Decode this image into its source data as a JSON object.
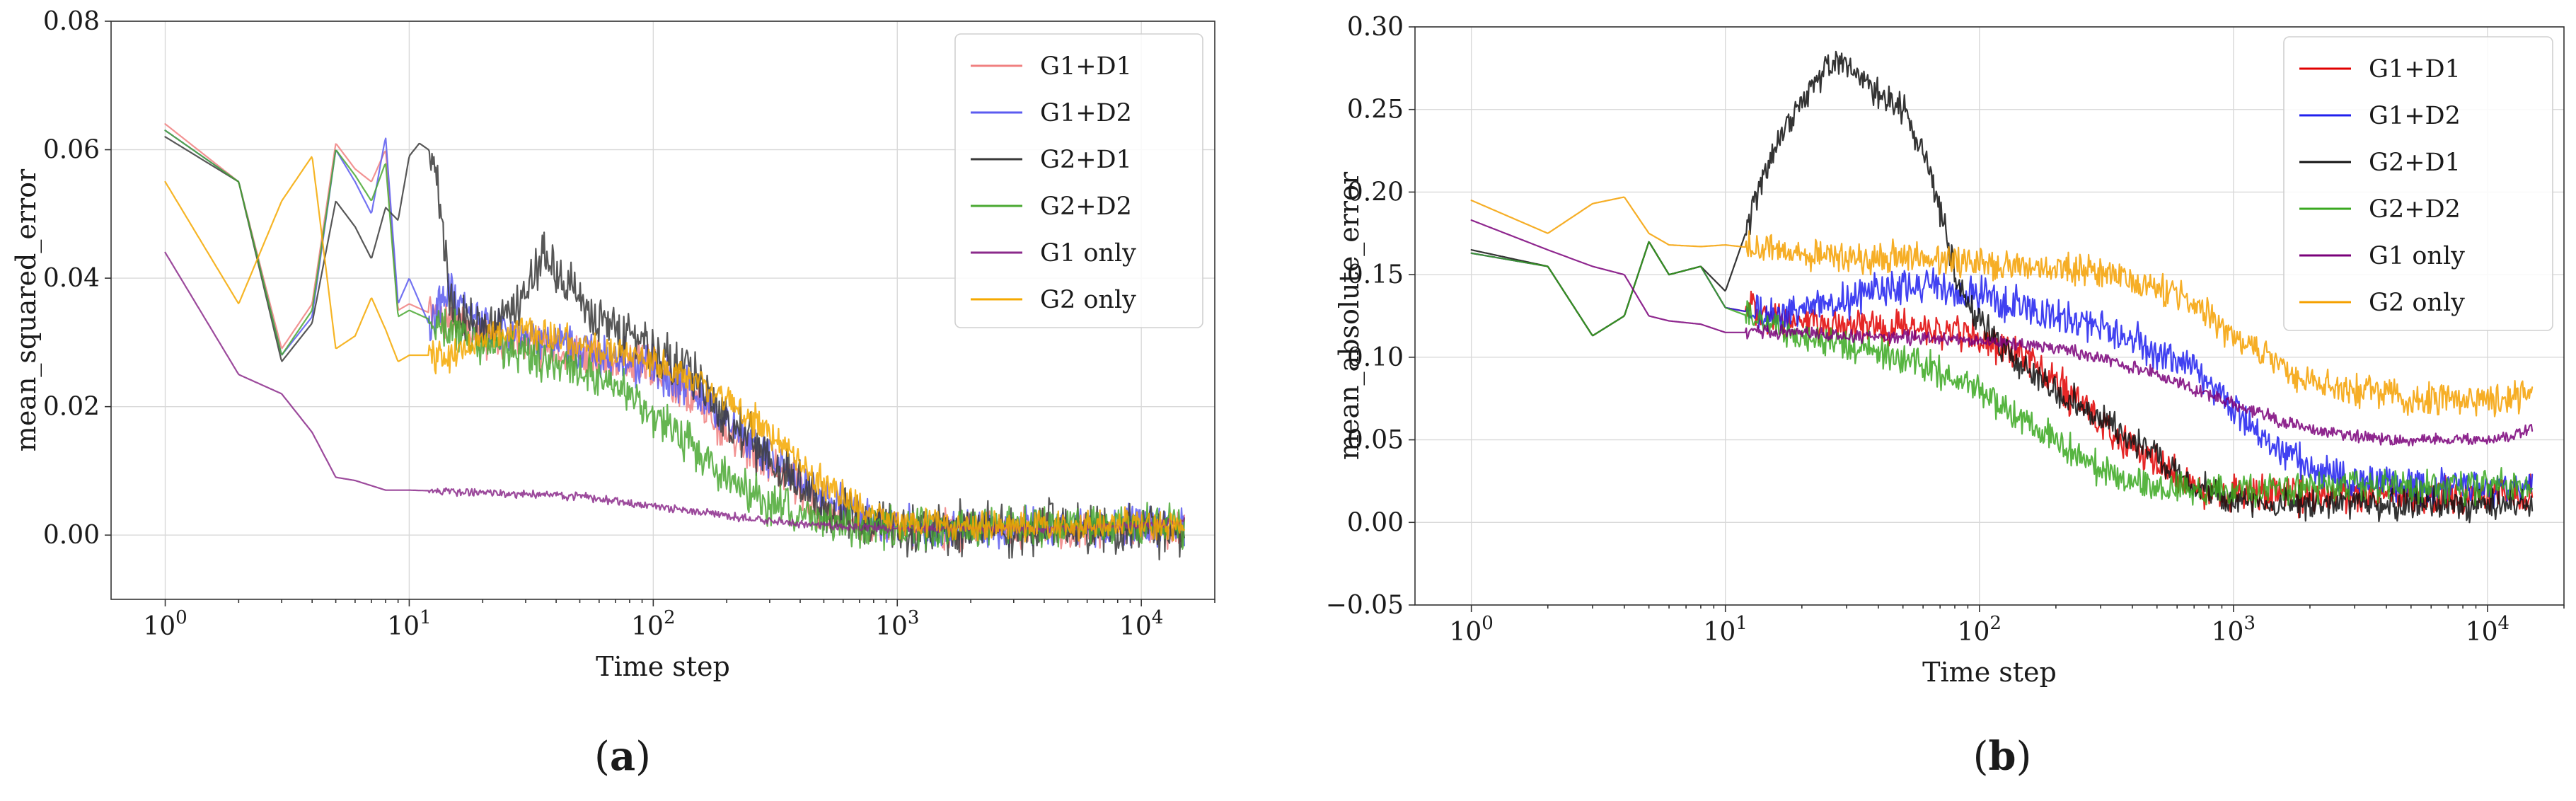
{
  "chart_data": [
    {
      "type": "line",
      "panel_label": "a",
      "xlabel": "Time step",
      "ylabel": "mean_squared_error",
      "xscale": "log",
      "xlim": [
        0.6,
        20000
      ],
      "ylim": [
        -0.01,
        0.08
      ],
      "yticks": [
        0.0,
        0.02,
        0.04,
        0.06,
        0.08
      ],
      "ytick_labels": [
        "0.00",
        "0.02",
        "0.04",
        "0.06",
        "0.08"
      ],
      "xticks": [
        {
          "base": "10",
          "exp": "0",
          "value": 1
        },
        {
          "base": "10",
          "exp": "1",
          "value": 10
        },
        {
          "base": "10",
          "exp": "2",
          "value": 100
        },
        {
          "base": "10",
          "exp": "3",
          "value": 1000
        },
        {
          "base": "10",
          "exp": "4",
          "value": 10000
        }
      ],
      "grid": true,
      "legend_position": "top-right",
      "series": [
        {
          "name": "G1+D1",
          "color": "#f08080",
          "x": [
            1,
            2,
            3,
            4,
            5,
            6,
            7,
            8,
            9,
            10,
            15,
            20,
            30,
            50,
            80,
            100,
            150,
            200,
            300,
            400,
            500,
            600,
            800,
            1000,
            2000,
            5000,
            10000,
            15000
          ],
          "y": [
            0.064,
            0.055,
            0.029,
            0.036,
            0.061,
            0.057,
            0.055,
            0.06,
            0.035,
            0.036,
            0.033,
            0.031,
            0.03,
            0.028,
            0.027,
            0.026,
            0.021,
            0.016,
            0.011,
            0.007,
            0.004,
            0.003,
            0.0015,
            0.001,
            0.001,
            0.001,
            0.001,
            0.001
          ],
          "noise": 0.004
        },
        {
          "name": "G1+D2",
          "color": "#5b5bf0",
          "x": [
            1,
            2,
            3,
            4,
            5,
            6,
            7,
            8,
            9,
            10,
            12,
            15,
            20,
            30,
            50,
            100,
            150,
            200,
            300,
            500,
            700,
            1000,
            1500,
            2000,
            5000,
            10000,
            15000
          ],
          "y": [
            0.063,
            0.055,
            0.028,
            0.034,
            0.06,
            0.055,
            0.05,
            0.062,
            0.036,
            0.04,
            0.033,
            0.038,
            0.033,
            0.031,
            0.029,
            0.026,
            0.022,
            0.018,
            0.012,
            0.006,
            0.003,
            0.0015,
            0.001,
            0.001,
            0.0015,
            0.0015,
            0.0015
          ],
          "noise": 0.004
        },
        {
          "name": "G2+D1",
          "color": "#3a3a3a",
          "x": [
            1,
            2,
            3,
            4,
            5,
            6,
            7,
            8,
            9,
            10,
            11,
            12,
            13,
            15,
            20,
            30,
            35,
            50,
            80,
            100,
            150,
            200,
            300,
            400,
            500,
            600,
            800,
            1000,
            2000,
            5000,
            10000,
            15000
          ],
          "y": [
            0.062,
            0.055,
            0.027,
            0.033,
            0.052,
            0.048,
            0.043,
            0.051,
            0.049,
            0.059,
            0.061,
            0.06,
            0.055,
            0.034,
            0.032,
            0.036,
            0.044,
            0.036,
            0.031,
            0.029,
            0.024,
            0.018,
            0.012,
            0.008,
            0.004,
            0.003,
            0.0015,
            0.001,
            0.001,
            0.001,
            0.001,
            0.001
          ],
          "noise": 0.005
        },
        {
          "name": "G2+D2",
          "color": "#4aa832",
          "x": [
            1,
            2,
            3,
            4,
            5,
            6,
            7,
            8,
            9,
            10,
            15,
            20,
            30,
            50,
            80,
            100,
            150,
            200,
            300,
            400,
            500,
            700,
            1000,
            2000,
            5000,
            10000,
            15000
          ],
          "y": [
            0.063,
            0.055,
            0.028,
            0.035,
            0.06,
            0.056,
            0.052,
            0.058,
            0.034,
            0.035,
            0.032,
            0.03,
            0.028,
            0.026,
            0.022,
            0.019,
            0.013,
            0.009,
            0.005,
            0.003,
            0.002,
            0.001,
            0.001,
            0.001,
            0.0015,
            0.0015,
            0.0015
          ],
          "noise": 0.004
        },
        {
          "name": "G1 only",
          "color": "#8b2a8b",
          "x": [
            1,
            2,
            3,
            4,
            5,
            6,
            8,
            10,
            15,
            20,
            30,
            50,
            100,
            200,
            300,
            500,
            1000,
            2000,
            5000,
            10000,
            15000
          ],
          "y": [
            0.044,
            0.025,
            0.022,
            0.016,
            0.009,
            0.0085,
            0.007,
            0.007,
            0.0068,
            0.0066,
            0.0064,
            0.006,
            0.0045,
            0.003,
            0.0022,
            0.0015,
            0.001,
            0.001,
            0.001,
            0.0015,
            0.002
          ],
          "noise": 0.0008
        },
        {
          "name": "G2 only",
          "color": "#f5a800",
          "x": [
            1,
            2,
            3,
            4,
            5,
            6,
            7,
            8,
            9,
            10,
            15,
            20,
            30,
            50,
            80,
            100,
            150,
            200,
            300,
            400,
            500,
            700,
            1000,
            2000,
            5000,
            10000,
            15000
          ],
          "y": [
            0.055,
            0.036,
            0.052,
            0.059,
            0.029,
            0.031,
            0.037,
            0.032,
            0.027,
            0.028,
            0.028,
            0.031,
            0.032,
            0.03,
            0.028,
            0.027,
            0.024,
            0.021,
            0.016,
            0.011,
            0.008,
            0.004,
            0.002,
            0.0015,
            0.0015,
            0.0015,
            0.0015
          ],
          "noise": 0.003
        }
      ]
    },
    {
      "type": "line",
      "panel_label": "b",
      "xlabel": "Time step",
      "ylabel": "mean_absolute_error",
      "xscale": "log",
      "xlim": [
        0.6,
        20000
      ],
      "ylim": [
        -0.05,
        0.3
      ],
      "yticks": [
        -0.05,
        0.0,
        0.05,
        0.1,
        0.15,
        0.2,
        0.25,
        0.3
      ],
      "ytick_labels": [
        "−0.05",
        "0.00",
        "0.05",
        "0.10",
        "0.15",
        "0.20",
        "0.25",
        "0.30"
      ],
      "xticks": [
        {
          "base": "10",
          "exp": "0",
          "value": 1
        },
        {
          "base": "10",
          "exp": "1",
          "value": 10
        },
        {
          "base": "10",
          "exp": "2",
          "value": 100
        },
        {
          "base": "10",
          "exp": "3",
          "value": 1000
        },
        {
          "base": "10",
          "exp": "4",
          "value": 10000
        }
      ],
      "grid": true,
      "legend_position": "top-right",
      "series": [
        {
          "name": "G1+D1",
          "color": "#e00000",
          "x": [
            1,
            2,
            3,
            4,
            5,
            6,
            8,
            10,
            15,
            20,
            30,
            50,
            80,
            100,
            150,
            200,
            300,
            500,
            700,
            1000,
            2000,
            5000,
            10000,
            15000
          ],
          "y": [
            0.163,
            0.155,
            0.113,
            0.125,
            0.17,
            0.15,
            0.155,
            0.13,
            0.125,
            0.12,
            0.118,
            0.118,
            0.116,
            0.112,
            0.1,
            0.085,
            0.06,
            0.035,
            0.022,
            0.018,
            0.016,
            0.016,
            0.016,
            0.016
          ],
          "noise": 0.014
        },
        {
          "name": "G1+D2",
          "color": "#2020ee",
          "x": [
            1,
            2,
            3,
            4,
            5,
            6,
            8,
            10,
            15,
            20,
            30,
            50,
            80,
            100,
            150,
            200,
            300,
            500,
            700,
            1000,
            1500,
            2000,
            3000,
            5000,
            10000,
            15000
          ],
          "y": [
            0.163,
            0.155,
            0.113,
            0.125,
            0.17,
            0.15,
            0.155,
            0.13,
            0.125,
            0.128,
            0.135,
            0.145,
            0.14,
            0.138,
            0.13,
            0.125,
            0.118,
            0.105,
            0.09,
            0.07,
            0.045,
            0.032,
            0.025,
            0.022,
            0.022,
            0.022
          ],
          "noise": 0.014
        },
        {
          "name": "G2+D1",
          "color": "#111111",
          "x": [
            1,
            2,
            3,
            4,
            5,
            6,
            8,
            10,
            12,
            15,
            20,
            25,
            30,
            35,
            40,
            50,
            60,
            70,
            80,
            100,
            150,
            200,
            300,
            500,
            700,
            1000,
            2000,
            5000,
            10000,
            15000
          ],
          "y": [
            0.165,
            0.155,
            0.113,
            0.125,
            0.17,
            0.15,
            0.155,
            0.14,
            0.175,
            0.22,
            0.255,
            0.275,
            0.28,
            0.265,
            0.26,
            0.25,
            0.225,
            0.19,
            0.15,
            0.12,
            0.095,
            0.08,
            0.062,
            0.04,
            0.022,
            0.013,
            0.012,
            0.011,
            0.011,
            0.011
          ],
          "noise": 0.012
        },
        {
          "name": "G2+D2",
          "color": "#3aa820",
          "x": [
            1,
            2,
            3,
            4,
            5,
            6,
            8,
            10,
            15,
            20,
            30,
            50,
            80,
            100,
            150,
            200,
            300,
            400,
            600,
            1000,
            2000,
            5000,
            10000,
            15000
          ],
          "y": [
            0.163,
            0.155,
            0.113,
            0.125,
            0.17,
            0.15,
            0.155,
            0.13,
            0.12,
            0.112,
            0.108,
            0.1,
            0.088,
            0.08,
            0.062,
            0.048,
            0.032,
            0.024,
            0.02,
            0.02,
            0.021,
            0.022,
            0.022,
            0.022
          ],
          "noise": 0.012
        },
        {
          "name": "G1 only",
          "color": "#7a007a",
          "x": [
            1,
            2,
            3,
            4,
            5,
            6,
            8,
            10,
            15,
            20,
            30,
            50,
            100,
            200,
            300,
            500,
            700,
            1000,
            1500,
            2000,
            3000,
            5000,
            10000,
            15000
          ],
          "y": [
            0.183,
            0.165,
            0.155,
            0.15,
            0.125,
            0.122,
            0.12,
            0.115,
            0.115,
            0.115,
            0.113,
            0.112,
            0.11,
            0.106,
            0.1,
            0.09,
            0.08,
            0.072,
            0.062,
            0.056,
            0.052,
            0.05,
            0.05,
            0.055
          ],
          "noise": 0.005
        },
        {
          "name": "G2 only",
          "color": "#f5a000",
          "x": [
            1,
            2,
            3,
            4,
            5,
            6,
            8,
            10,
            15,
            20,
            30,
            50,
            80,
            100,
            150,
            200,
            300,
            500,
            700,
            1000,
            1500,
            2000,
            3000,
            5000,
            10000,
            15000
          ],
          "y": [
            0.195,
            0.175,
            0.193,
            0.197,
            0.175,
            0.168,
            0.167,
            0.168,
            0.165,
            0.162,
            0.162,
            0.16,
            0.158,
            0.157,
            0.155,
            0.153,
            0.15,
            0.143,
            0.132,
            0.112,
            0.095,
            0.085,
            0.08,
            0.075,
            0.075,
            0.078
          ],
          "noise": 0.012
        }
      ]
    }
  ]
}
